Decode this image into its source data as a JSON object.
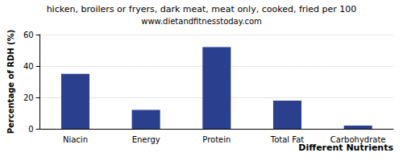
{
  "chart_data": {
    "type": "bar",
    "title": "hicken, broilers or fryers, dark meat, meat only, cooked, fried per 100",
    "subtitle": "www.dietandfitnesstoday.com",
    "x_label": "Different Nutrients",
    "y_label": "Percentage of RDH (%)",
    "categories": [
      "Niacin",
      "Energy",
      "Protein",
      "Total Fat",
      "Carbohydrate"
    ],
    "values": [
      35,
      12,
      52,
      18,
      2
    ],
    "color": "#2b3f8f",
    "ylim": [
      0,
      60
    ],
    "yticks": [
      0,
      20,
      40,
      60
    ],
    "grid": true
  }
}
